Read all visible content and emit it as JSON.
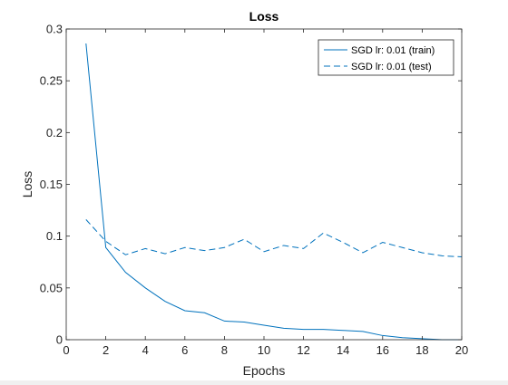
{
  "chart_data": {
    "type": "line",
    "title": "Loss",
    "xlabel": "Epochs",
    "ylabel": "Loss",
    "xlim": [
      0,
      20
    ],
    "ylim": [
      0,
      0.3
    ],
    "xticks": [
      "0",
      "2",
      "4",
      "6",
      "8",
      "10",
      "12",
      "14",
      "16",
      "18",
      "20"
    ],
    "yticks": [
      "0",
      "0.05",
      "0.1",
      "0.15",
      "0.2",
      "0.25",
      "0.3"
    ],
    "grid": false,
    "legend_position": "top-right",
    "color": "#0072bd",
    "series": [
      {
        "name": "SGD lr: 0.01 (train)",
        "style": "solid",
        "x": [
          1,
          2,
          3,
          4,
          5,
          6,
          7,
          8,
          9,
          10,
          11,
          12,
          13,
          14,
          15,
          16,
          17,
          18,
          19,
          20
        ],
        "y": [
          0.286,
          0.089,
          0.065,
          0.05,
          0.037,
          0.028,
          0.026,
          0.018,
          0.017,
          0.014,
          0.011,
          0.01,
          0.01,
          0.009,
          0.008,
          0.004,
          0.002,
          0.001,
          0.0,
          0.0
        ]
      },
      {
        "name": "SGD lr: 0.01 (test)",
        "style": "dashed",
        "x": [
          1,
          2,
          3,
          4,
          5,
          6,
          7,
          8,
          9,
          10,
          11,
          12,
          13,
          14,
          15,
          16,
          17,
          18,
          19,
          20
        ],
        "y": [
          0.116,
          0.095,
          0.082,
          0.088,
          0.083,
          0.089,
          0.086,
          0.089,
          0.097,
          0.085,
          0.091,
          0.088,
          0.103,
          0.094,
          0.084,
          0.094,
          0.089,
          0.084,
          0.081,
          0.08
        ]
      }
    ]
  }
}
